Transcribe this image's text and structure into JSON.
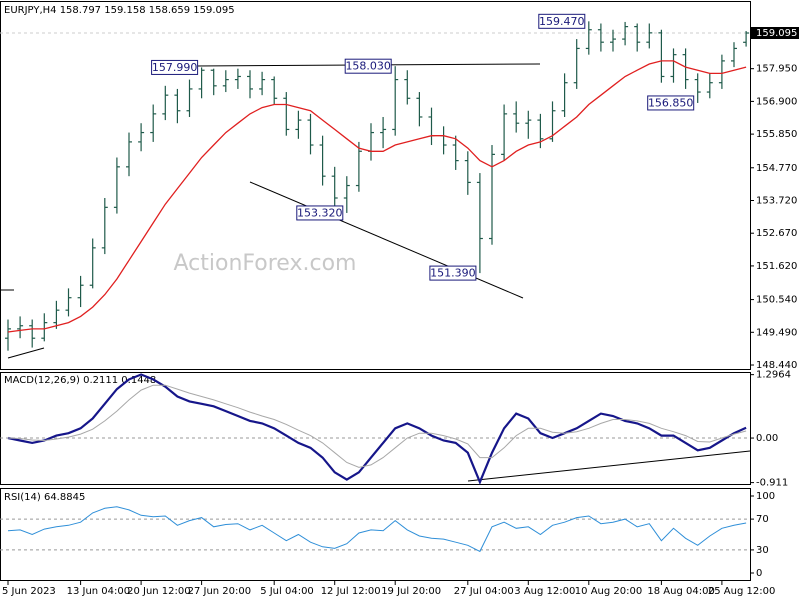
{
  "chart_data": [
    {
      "type": "ohlc",
      "title": "EURJPY,H4  158.797 159.158 158.659 159.095",
      "watermark": "ActionForex.com",
      "color": "#1f5a4a",
      "open": [
        149.3,
        149.6,
        149.7,
        149.3,
        149.8,
        150.2,
        150.6,
        151.0,
        152.2,
        153.5,
        154.8,
        155.6,
        155.9,
        156.5,
        157.1,
        156.6,
        157.3,
        157.9,
        157.4,
        157.6,
        157.7,
        157.3,
        157.6,
        157.0,
        156.0,
        156.3,
        155.5,
        154.5,
        153.8,
        154.2,
        155.3,
        155.9,
        156.0,
        157.6,
        157.0,
        156.4,
        155.8,
        155.5,
        155.0,
        154.3,
        152.5,
        155.2,
        156.5,
        156.2,
        156.3,
        155.7,
        156.6,
        157.5,
        158.6,
        159.2,
        158.8,
        158.9,
        159.3,
        158.8,
        159.1,
        157.7,
        158.4,
        157.6,
        157.2,
        157.5,
        158.2,
        158.797
      ],
      "high": [
        149.9,
        150.0,
        149.9,
        150.1,
        150.5,
        150.9,
        151.3,
        152.5,
        153.8,
        155.1,
        155.9,
        156.2,
        156.8,
        157.4,
        157.3,
        157.6,
        157.99,
        157.95,
        157.9,
        157.95,
        157.9,
        157.85,
        157.7,
        157.2,
        156.6,
        156.5,
        155.8,
        154.8,
        154.5,
        155.6,
        156.2,
        156.4,
        158.03,
        157.9,
        157.2,
        156.7,
        156.1,
        155.8,
        155.3,
        154.6,
        155.5,
        156.8,
        156.9,
        156.6,
        156.5,
        156.9,
        157.8,
        158.9,
        159.47,
        159.4,
        159.2,
        159.45,
        159.4,
        159.4,
        159.2,
        158.6,
        158.6,
        157.8,
        157.8,
        158.4,
        158.8,
        159.158
      ],
      "low": [
        148.9,
        149.3,
        149.0,
        149.2,
        149.6,
        150.0,
        150.3,
        150.9,
        152.0,
        153.3,
        154.5,
        155.3,
        155.6,
        156.3,
        156.2,
        156.4,
        157.0,
        157.1,
        157.2,
        157.3,
        157.0,
        157.1,
        156.8,
        155.8,
        155.7,
        155.2,
        154.2,
        153.5,
        153.32,
        154.0,
        155.0,
        155.4,
        155.8,
        156.8,
        156.1,
        155.5,
        155.2,
        154.7,
        153.9,
        151.39,
        152.3,
        155.0,
        155.9,
        155.7,
        155.4,
        155.6,
        156.4,
        157.3,
        158.4,
        158.5,
        158.5,
        158.7,
        158.5,
        158.6,
        157.5,
        157.5,
        157.3,
        156.85,
        157.0,
        157.3,
        158.0,
        158.659
      ],
      "close": [
        149.6,
        149.7,
        149.3,
        149.8,
        150.2,
        150.6,
        151.0,
        152.2,
        153.5,
        154.8,
        155.6,
        155.9,
        156.5,
        157.1,
        156.6,
        157.3,
        157.9,
        157.4,
        157.6,
        157.7,
        157.3,
        157.6,
        157.0,
        156.0,
        156.3,
        155.5,
        154.5,
        153.8,
        154.2,
        155.3,
        155.9,
        156.0,
        157.6,
        157.0,
        156.4,
        155.8,
        155.5,
        155.0,
        154.3,
        152.5,
        155.2,
        156.5,
        156.2,
        156.3,
        155.7,
        156.6,
        157.5,
        158.6,
        159.2,
        158.8,
        158.9,
        159.3,
        158.8,
        159.1,
        157.7,
        158.4,
        157.6,
        157.2,
        157.5,
        158.2,
        158.6,
        159.095
      ],
      "ma": {
        "color": "#e02020",
        "values": [
          149.5,
          149.55,
          149.6,
          149.6,
          149.7,
          149.8,
          150.0,
          150.3,
          150.7,
          151.2,
          151.8,
          152.4,
          153.0,
          153.6,
          154.1,
          154.6,
          155.1,
          155.5,
          155.9,
          156.2,
          156.5,
          156.7,
          156.8,
          156.8,
          156.7,
          156.6,
          156.3,
          156.0,
          155.7,
          155.4,
          155.3,
          155.3,
          155.5,
          155.6,
          155.7,
          155.8,
          155.8,
          155.7,
          155.4,
          155.0,
          154.8,
          155.0,
          155.3,
          155.5,
          155.6,
          155.8,
          156.1,
          156.4,
          156.8,
          157.1,
          157.4,
          157.7,
          157.9,
          158.1,
          158.2,
          158.2,
          158.0,
          157.9,
          157.8,
          157.8,
          157.9,
          158.0
        ]
      },
      "annotations": [
        {
          "text": "157.990",
          "index": 16,
          "value": 157.99
        },
        {
          "text": "158.030",
          "index": 32,
          "value": 158.03
        },
        {
          "text": "153.320",
          "index": 28,
          "value": 153.32
        },
        {
          "text": "151.390",
          "index": 39,
          "value": 151.39
        },
        {
          "text": "159.470",
          "index": 48,
          "value": 159.47
        },
        {
          "text": "156.850",
          "index": 57,
          "value": 156.85
        }
      ],
      "last_price": {
        "value": 159.095,
        "label": "159.095"
      },
      "ylim": [
        148.28,
        160.09
      ],
      "yticks": [
        {
          "value": 157.95,
          "label": "157.950"
        },
        {
          "value": 156.9,
          "label": "156.900"
        },
        {
          "value": 155.85,
          "label": "155.850"
        },
        {
          "value": 154.77,
          "label": "154.770"
        },
        {
          "value": 153.72,
          "label": "153.720"
        },
        {
          "value": 152.67,
          "label": "152.670"
        },
        {
          "value": 151.62,
          "label": "151.620"
        },
        {
          "value": 150.54,
          "label": "150.540"
        },
        {
          "value": 149.49,
          "label": "149.490"
        },
        {
          "value": 148.44,
          "label": "148.440"
        }
      ]
    },
    {
      "type": "macd",
      "title": "MACD(12,26,9) 0.2111 0.1448",
      "series": [
        {
          "color": "#16168a",
          "values": [
            0.0,
            -0.05,
            -0.1,
            -0.05,
            0.05,
            0.1,
            0.2,
            0.4,
            0.7,
            1.0,
            1.2,
            1.3,
            1.2,
            1.05,
            0.85,
            0.75,
            0.7,
            0.65,
            0.55,
            0.45,
            0.35,
            0.3,
            0.2,
            0.05,
            -0.1,
            -0.2,
            -0.4,
            -0.7,
            -0.85,
            -0.7,
            -0.4,
            -0.1,
            0.2,
            0.3,
            0.2,
            0.05,
            -0.05,
            -0.1,
            -0.3,
            -0.9,
            -0.3,
            0.2,
            0.5,
            0.4,
            0.1,
            0.0,
            0.1,
            0.2,
            0.35,
            0.5,
            0.45,
            0.35,
            0.3,
            0.2,
            0.05,
            0.05,
            -0.1,
            -0.25,
            -0.2,
            -0.05,
            0.1,
            0.2111
          ]
        },
        {
          "color": "#a8a8a8",
          "values": [
            0.0,
            -0.01,
            -0.04,
            -0.05,
            -0.02,
            0.02,
            0.08,
            0.18,
            0.35,
            0.55,
            0.78,
            0.98,
            1.08,
            1.08,
            1.0,
            0.92,
            0.85,
            0.78,
            0.7,
            0.62,
            0.53,
            0.45,
            0.38,
            0.28,
            0.16,
            0.05,
            -0.1,
            -0.3,
            -0.5,
            -0.6,
            -0.55,
            -0.4,
            -0.2,
            0.0,
            0.1,
            0.1,
            0.05,
            -0.02,
            -0.12,
            -0.4,
            -0.4,
            -0.2,
            0.05,
            0.2,
            0.2,
            0.12,
            0.1,
            0.13,
            0.2,
            0.3,
            0.38,
            0.38,
            0.35,
            0.3,
            0.2,
            0.13,
            0.05,
            -0.07,
            -0.08,
            0.0,
            0.08,
            0.1448
          ]
        }
      ],
      "zero_line": true,
      "ylim": [
        -0.96,
        1.33
      ],
      "yticks": [
        1.2964,
        {
          "value": 0,
          "label": "0.00"
        },
        -0.911
      ]
    },
    {
      "type": "line",
      "title": "RSI(14) 64.8845",
      "color": "#2f8fd8",
      "values": [
        55,
        56,
        50,
        57,
        60,
        62,
        66,
        78,
        84,
        86,
        82,
        75,
        73,
        74,
        62,
        68,
        72,
        60,
        63,
        64,
        56,
        62,
        52,
        42,
        50,
        40,
        34,
        32,
        38,
        52,
        56,
        55,
        68,
        56,
        48,
        45,
        44,
        40,
        36,
        28,
        60,
        66,
        58,
        60,
        50,
        62,
        66,
        72,
        74,
        64,
        66,
        70,
        60,
        64,
        42,
        58,
        45,
        36,
        48,
        58,
        62,
        64.8845
      ],
      "levels": [
        70,
        30
      ],
      "ylim": [
        -9.1,
        109.1
      ],
      "yticks": [
        100,
        70,
        30,
        0
      ],
      "categories": [
        "5 Jun 2023",
        null,
        null,
        null,
        null,
        null,
        "13 Jun 04:00",
        null,
        null,
        null,
        null,
        "20 Jun 12:00",
        null,
        null,
        null,
        null,
        "27 Jun 20:00",
        null,
        null,
        null,
        null,
        null,
        "5 Jul 04:00",
        null,
        null,
        null,
        null,
        "12 Jul 12:00",
        null,
        null,
        null,
        null,
        "19 Jul 20:00",
        null,
        null,
        null,
        null,
        null,
        "27 Jul 04:00",
        null,
        null,
        null,
        null,
        "3 Aug 12:00",
        null,
        null,
        null,
        null,
        "10 Aug 20:00",
        null,
        null,
        null,
        null,
        null,
        "18 Aug 04:00",
        null,
        null,
        null,
        null,
        "25 Aug 12:00",
        null,
        null
      ]
    }
  ]
}
